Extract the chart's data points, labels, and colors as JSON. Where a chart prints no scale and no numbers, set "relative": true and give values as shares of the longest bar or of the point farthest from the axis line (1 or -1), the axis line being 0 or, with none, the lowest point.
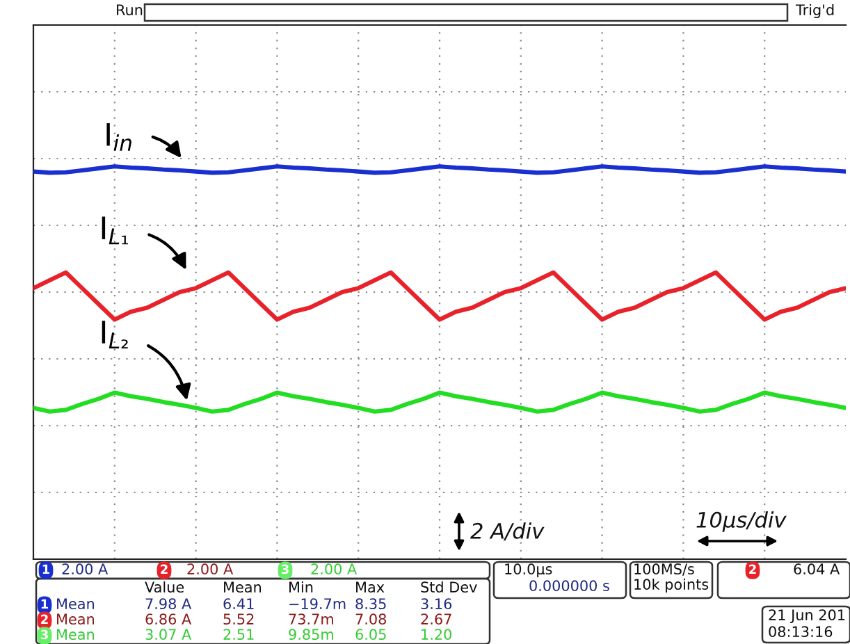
{
  "chart_data": {
    "type": "line",
    "relative": true,
    "grid": true,
    "legend": false,
    "marker": "none",
    "line_style": "solid",
    "categories": [
      null,
      null,
      null,
      null,
      null,
      null,
      null,
      null,
      null,
      null,
      null,
      null,
      null,
      null,
      null,
      null,
      null,
      null,
      null,
      null,
      null,
      null,
      null,
      null,
      null,
      null,
      null,
      null,
      null,
      null,
      null,
      null,
      null,
      null,
      null,
      null,
      null,
      null,
      null,
      null,
      null,
      null,
      null,
      null,
      null,
      null,
      null,
      null,
      null,
      null,
      null
    ],
    "series": [
      {
        "name": "I$_{in}$",
        "color": "#1a2fd0",
        "values": [
          0.987,
          0.984,
          0.985,
          0.99,
          0.995,
          1.0,
          0.997,
          0.995,
          0.992,
          0.99,
          0.987,
          0.984,
          0.985,
          0.99,
          0.995,
          1.0,
          0.997,
          0.995,
          0.992,
          0.99,
          0.987,
          0.984,
          0.985,
          0.99,
          0.995,
          1.0,
          0.997,
          0.995,
          0.992,
          0.99,
          0.987,
          0.984,
          0.985,
          0.99,
          0.995,
          1.0,
          0.997,
          0.995,
          0.992,
          0.99,
          0.987,
          0.984,
          0.985,
          0.99,
          0.995,
          1.0,
          0.997,
          0.995,
          0.992,
          0.99,
          0.987
        ]
      },
      {
        "name": "I$_{L₁}$",
        "color": "#e8222a",
        "values": [
          0.69,
          0.71,
          0.73,
          0.69,
          0.65,
          0.61,
          0.63,
          0.64,
          0.66,
          0.68,
          0.69,
          0.71,
          0.73,
          0.69,
          0.65,
          0.61,
          0.63,
          0.64,
          0.66,
          0.68,
          0.69,
          0.71,
          0.73,
          0.69,
          0.65,
          0.61,
          0.63,
          0.64,
          0.66,
          0.68,
          0.69,
          0.71,
          0.73,
          0.69,
          0.65,
          0.61,
          0.63,
          0.64,
          0.66,
          0.68,
          0.69,
          0.71,
          0.73,
          0.69,
          0.65,
          0.61,
          0.63,
          0.64,
          0.66,
          0.68,
          0.69
        ]
      },
      {
        "name": "I$_{L₂}$",
        "color": "#22dd22",
        "values": [
          0.385,
          0.376,
          0.38,
          0.395,
          0.408,
          0.424,
          0.415,
          0.408,
          0.4,
          0.393,
          0.385,
          0.376,
          0.38,
          0.395,
          0.408,
          0.424,
          0.415,
          0.408,
          0.4,
          0.393,
          0.385,
          0.376,
          0.38,
          0.395,
          0.408,
          0.424,
          0.415,
          0.408,
          0.4,
          0.393,
          0.385,
          0.376,
          0.38,
          0.395,
          0.408,
          0.424,
          0.415,
          0.408,
          0.4,
          0.393,
          0.385,
          0.376,
          0.38,
          0.395,
          0.408,
          0.424,
          0.415,
          0.408,
          0.4,
          0.393,
          0.385
        ]
      }
    ],
    "annotations": [
      "Run",
      "Trig'd",
      "2 A/div",
      "10μs/div",
      "2.00 A",
      "2.00 A",
      "2.00 A",
      "10.0μs",
      "0.000000 s",
      "100MS/s",
      "10k points",
      "6.04 A",
      "21 Jun 201",
      "08:13:16",
      "Value",
      "Mean",
      "Min",
      "Max",
      "Std Dev",
      "Mean",
      "7.98 A",
      "6.41",
      "−19.7m",
      "8.35",
      "3.16",
      "Mean",
      "6.86 A",
      "5.52",
      "73.7m",
      "7.08",
      "2.67",
      "Mean",
      "3.07 A",
      "2.51",
      "9.85m",
      "6.05",
      "1.20",
      "1",
      "2",
      "3",
      "1",
      "2",
      "3",
      "2"
    ]
  }
}
